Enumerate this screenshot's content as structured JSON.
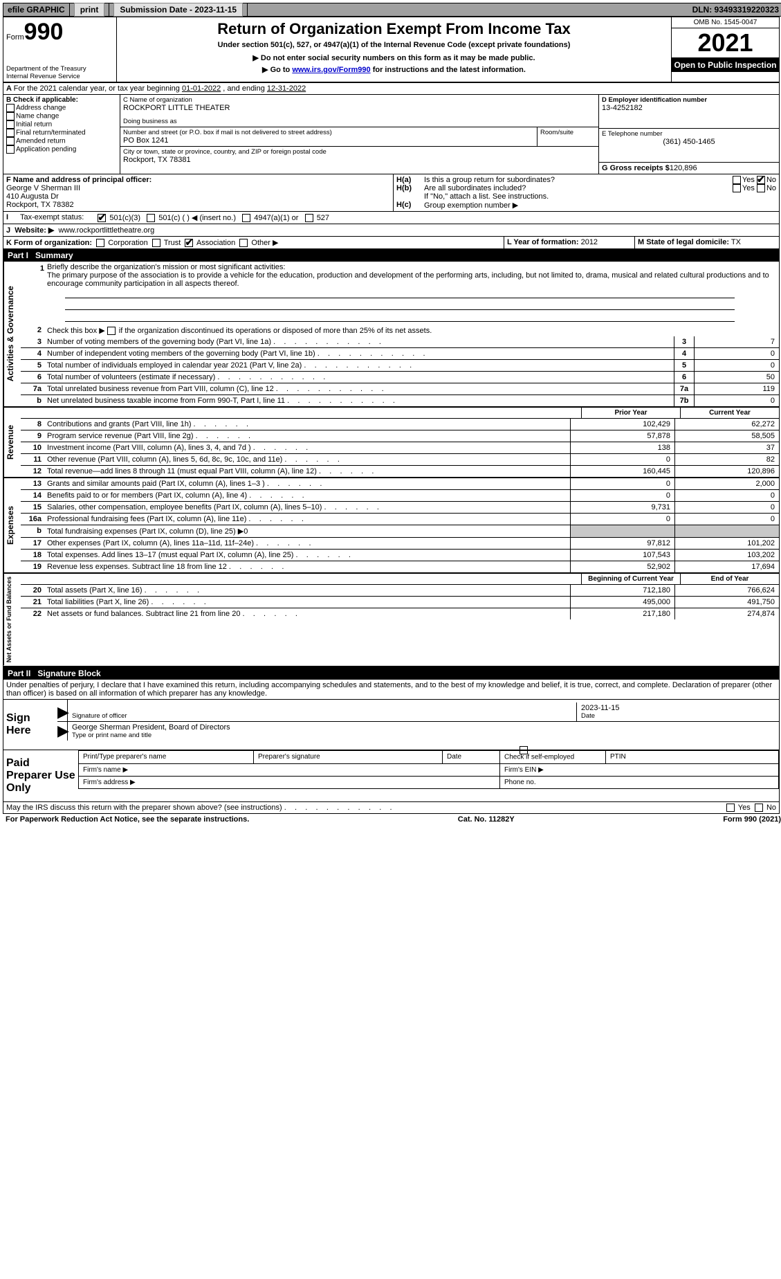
{
  "top_bar": {
    "efile": "efile GRAPHIC",
    "print": "print",
    "submission_label": "Submission Date - 2023-11-15",
    "dln": "DLN: 93493319220323"
  },
  "header": {
    "form_word": "Form",
    "form_number": "990",
    "dept": "Department of the Treasury",
    "irs": "Internal Revenue Service",
    "title": "Return of Organization Exempt From Income Tax",
    "subtitle": "Under section 501(c), 527, or 4947(a)(1) of the Internal Revenue Code (except private foundations)",
    "warn": "▶ Do not enter social security numbers on this form as it may be made public.",
    "goto": "▶ Go to ",
    "goto_link": "www.irs.gov/Form990",
    "goto_tail": " for instructions and the latest information.",
    "omb": "OMB No. 1545-0047",
    "year": "2021",
    "open": "Open to Public Inspection"
  },
  "A": {
    "text": "For the 2021 calendar year, or tax year beginning ",
    "begin": "01-01-2022",
    "mid": " , and ending ",
    "end": "12-31-2022"
  },
  "B": {
    "label": "B Check if applicable:",
    "items": [
      "Address change",
      "Name change",
      "Initial return",
      "Final return/terminated",
      "Amended return",
      "Application pending"
    ]
  },
  "C": {
    "name_label": "C Name of organization",
    "name": "ROCKPORT LITTLE THEATER",
    "dba_label": "Doing business as",
    "street_label": "Number and street (or P.O. box if mail is not delivered to street address)",
    "room_label": "Room/suite",
    "street": "PO Box 1241",
    "city_label": "City or town, state or province, country, and ZIP or foreign postal code",
    "city": "Rockport, TX  78381"
  },
  "D": {
    "label": "D Employer identification number",
    "value": "13-4252182"
  },
  "E": {
    "label": "E Telephone number",
    "value": "(361) 450-1465"
  },
  "G": {
    "label": "G Gross receipts $",
    "value": "120,896"
  },
  "F": {
    "label": "F  Name and address of principal officer:",
    "name": "George V Sherman III",
    "addr1": "410 Augusta Dr",
    "addr2": "Rockport, TX  78382"
  },
  "H": {
    "a": "Is this a group return for subordinates?",
    "b": "Are all subordinates included?",
    "b_note": "If \"No,\" attach a list. See instructions.",
    "c": "Group exemption number ▶",
    "yes": "Yes",
    "no": "No"
  },
  "I": {
    "label": "Tax-exempt status:",
    "o1": "501(c)(3)",
    "o2": "501(c) (   ) ◀ (insert no.)",
    "o3": "4947(a)(1) or",
    "o4": "527"
  },
  "J": {
    "label": "Website: ▶",
    "value": "www.rockportlittletheatre.org"
  },
  "K": {
    "label": "K Form of organization:",
    "o1": "Corporation",
    "o2": "Trust",
    "o3": "Association",
    "o4": "Other ▶"
  },
  "L": {
    "label": "L Year of formation:",
    "value": "2012"
  },
  "M": {
    "label": "M State of legal domicile:",
    "value": "TX"
  },
  "part1": {
    "label": "Part I",
    "title": "Summary"
  },
  "summary": {
    "mission_label": "Briefly describe the organization's mission or most significant activities:",
    "mission": "The primary purpose of the association is to provide a vehicle for the education, production and development of the performing arts, including, but not limited to, drama, musical and related cultural productions and to encourage community participation in all aspects thereof.",
    "line2": "Check this box ▶",
    "line2_tail": " if the organization discontinued its operations or disposed of more than 25% of its net assets.",
    "line3": "Number of voting members of the governing body (Part VI, line 1a)",
    "line4": "Number of independent voting members of the governing body (Part VI, line 1b)",
    "line5": "Total number of individuals employed in calendar year 2021 (Part V, line 2a)",
    "line6": "Total number of volunteers (estimate if necessary)",
    "line7a": "Total unrelated business revenue from Part VIII, column (C), line 12",
    "line7b": "Net unrelated business taxable income from Form 990-T, Part I, line 11",
    "vals": {
      "3": "7",
      "4": "0",
      "5": "0",
      "6": "50",
      "7a": "119",
      "7b": "0"
    },
    "prior_label": "Prior Year",
    "current_label": "Current Year",
    "rows": [
      {
        "n": "8",
        "d": "Contributions and grants (Part VIII, line 1h)",
        "p": "102,429",
        "c": "62,272"
      },
      {
        "n": "9",
        "d": "Program service revenue (Part VIII, line 2g)",
        "p": "57,878",
        "c": "58,505"
      },
      {
        "n": "10",
        "d": "Investment income (Part VIII, column (A), lines 3, 4, and 7d )",
        "p": "138",
        "c": "37"
      },
      {
        "n": "11",
        "d": "Other revenue (Part VIII, column (A), lines 5, 6d, 8c, 9c, 10c, and 11e)",
        "p": "0",
        "c": "82"
      },
      {
        "n": "12",
        "d": "Total revenue—add lines 8 through 11 (must equal Part VIII, column (A), line 12)",
        "p": "160,445",
        "c": "120,896"
      },
      {
        "n": "13",
        "d": "Grants and similar amounts paid (Part IX, column (A), lines 1–3 )",
        "p": "0",
        "c": "2,000"
      },
      {
        "n": "14",
        "d": "Benefits paid to or for members (Part IX, column (A), line 4)",
        "p": "0",
        "c": "0"
      },
      {
        "n": "15",
        "d": "Salaries, other compensation, employee benefits (Part IX, column (A), lines 5–10)",
        "p": "9,731",
        "c": "0"
      },
      {
        "n": "16a",
        "d": "Professional fundraising fees (Part IX, column (A), line 11e)",
        "p": "0",
        "c": "0"
      },
      {
        "n": "b",
        "d": "Total fundraising expenses (Part IX, column (D), line 25) ▶0",
        "p": "",
        "c": "",
        "shade": true
      },
      {
        "n": "17",
        "d": "Other expenses (Part IX, column (A), lines 11a–11d, 11f–24e)",
        "p": "97,812",
        "c": "101,202"
      },
      {
        "n": "18",
        "d": "Total expenses. Add lines 13–17 (must equal Part IX, column (A), line 25)",
        "p": "107,543",
        "c": "103,202"
      },
      {
        "n": "19",
        "d": "Revenue less expenses. Subtract line 18 from line 12",
        "p": "52,902",
        "c": "17,694"
      }
    ],
    "begin_label": "Beginning of Current Year",
    "end_label": "End of Year",
    "net_rows": [
      {
        "n": "20",
        "d": "Total assets (Part X, line 16)",
        "p": "712,180",
        "c": "766,624"
      },
      {
        "n": "21",
        "d": "Total liabilities (Part X, line 26)",
        "p": "495,000",
        "c": "491,750"
      },
      {
        "n": "22",
        "d": "Net assets or fund balances. Subtract line 21 from line 20",
        "p": "217,180",
        "c": "274,874"
      }
    ],
    "vlabels": {
      "gov": "Activities & Governance",
      "rev": "Revenue",
      "exp": "Expenses",
      "net": "Net Assets or Fund Balances"
    }
  },
  "part2": {
    "label": "Part II",
    "title": "Signature Block"
  },
  "sig": {
    "perjury": "Under penalties of perjury, I declare that I have examined this return, including accompanying schedules and statements, and to the best of my knowledge and belief, it is true, correct, and complete. Declaration of preparer (other than officer) is based on all information of which preparer has any knowledge.",
    "sign_here": "Sign Here",
    "date": "2023-11-15",
    "sig_officer": "Signature of officer",
    "date_label": "Date",
    "typed_name": "George Sherman  President, Board of Directors",
    "typed_label": "Type or print name and title",
    "paid": "Paid Preparer Use Only",
    "prep_name": "Print/Type preparer's name",
    "prep_sig": "Preparer's signature",
    "prep_date": "Date",
    "check_self": "Check         if self-employed",
    "ptin": "PTIN",
    "firm_name": "Firm's name   ▶",
    "firm_ein": "Firm's EIN ▶",
    "firm_addr": "Firm's address ▶",
    "phone": "Phone no.",
    "may_irs": "May the IRS discuss this return with the preparer shown above? (see instructions)"
  },
  "footer": {
    "left": "For Paperwork Reduction Act Notice, see the separate instructions.",
    "mid": "Cat. No. 11282Y",
    "right": "Form 990 (2021)"
  }
}
